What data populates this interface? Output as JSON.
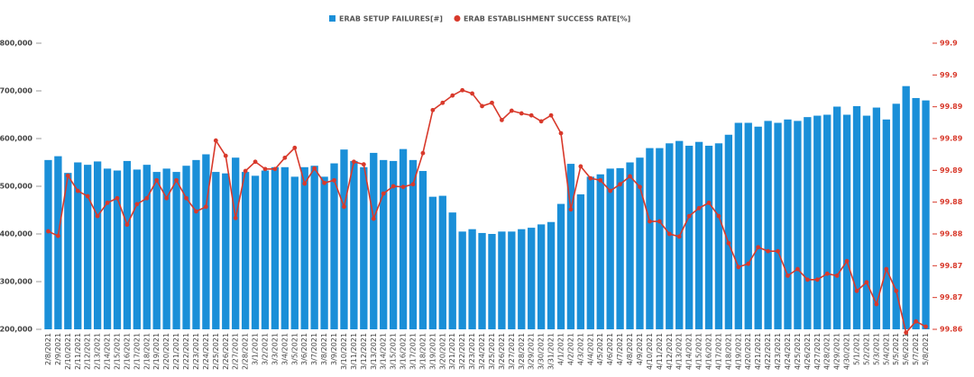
{
  "chart_data": {
    "type": "bar_line",
    "categories": [
      "2/8/2021",
      "2/9/2021",
      "2/10/2021",
      "2/11/2021",
      "2/12/2021",
      "2/13/2021",
      "2/14/2021",
      "2/15/2021",
      "2/16/2021",
      "2/17/2021",
      "2/18/2021",
      "2/19/2021",
      "2/20/2021",
      "2/21/2021",
      "2/22/2021",
      "2/23/2021",
      "2/24/2021",
      "2/25/2021",
      "2/26/2021",
      "2/27/2021",
      "2/28/2021",
      "3/1/2021",
      "3/2/2021",
      "3/3/2021",
      "3/4/2021",
      "3/5/2021",
      "3/6/2021",
      "3/7/2021",
      "3/8/2021",
      "3/9/2021",
      "3/10/2021",
      "3/11/2021",
      "3/12/2021",
      "3/13/2021",
      "3/14/2021",
      "3/15/2021",
      "3/16/2021",
      "3/17/2021",
      "3/18/2021",
      "3/19/2021",
      "3/20/2021",
      "3/21/2021",
      "3/22/2021",
      "3/23/2021",
      "3/24/2021",
      "3/25/2021",
      "3/26/2021",
      "3/27/2021",
      "3/28/2021",
      "3/29/2021",
      "3/30/2021",
      "3/31/2021",
      "4/1/2021",
      "4/2/2021",
      "4/3/2021",
      "4/4/2021",
      "4/5/2021",
      "4/6/2021",
      "4/7/2021",
      "4/8/2021",
      "4/9/2021",
      "4/10/2021",
      "4/11/2021",
      "4/12/2021",
      "4/13/2021",
      "4/14/2021",
      "4/15/2021",
      "4/16/2021",
      "4/17/2021",
      "4/18/2021",
      "4/19/2021",
      "4/20/2021",
      "4/21/2021",
      "4/22/2021",
      "4/23/2021",
      "4/24/2021",
      "4/25/2021",
      "4/26/2021",
      "4/27/2021",
      "4/28/2021",
      "4/29/2021",
      "4/30/2021",
      "5/1/2021",
      "5/2/2021",
      "5/3/2021",
      "5/4/2021",
      "5/5/2021",
      "5/6/2021",
      "5/7/2021",
      "5/8/2021"
    ],
    "series": [
      {
        "name": "ERAB SETUP FAILURES[#]",
        "color": "#1a8fd8",
        "kind": "bar",
        "values": [
          555000,
          563000,
          528000,
          550000,
          545000,
          552000,
          537000,
          533000,
          553000,
          535000,
          545000,
          530000,
          537000,
          530000,
          543000,
          555000,
          567000,
          530000,
          527000,
          560000,
          530000,
          522000,
          533000,
          540000,
          540000,
          520000,
          540000,
          543000,
          520000,
          548000,
          577000,
          553000,
          540000,
          570000,
          555000,
          553000,
          578000,
          555000,
          532000,
          478000,
          480000,
          445000,
          405000,
          410000,
          402000,
          400000,
          405000,
          405000,
          410000,
          413000,
          420000,
          425000,
          463000,
          547000,
          483000,
          520000,
          525000,
          537000,
          538000,
          550000,
          560000,
          580000,
          580000,
          590000,
          595000,
          585000,
          593000,
          585000,
          590000,
          608000,
          633000,
          633000,
          625000,
          637000,
          633000,
          640000,
          637000,
          645000,
          648000,
          650000,
          667000,
          650000,
          668000,
          648000,
          665000,
          640000,
          673000,
          710000,
          685000,
          680000
        ]
      },
      {
        "name": "ERAB ESTABLISHMENT SUCCESS RATE[%]",
        "color": "#d8392b",
        "kind": "line",
        "axis": "y2",
        "values": [
          99.876,
          99.8753,
          99.8844,
          99.8821,
          99.8813,
          99.8783,
          99.8803,
          99.881,
          99.877,
          99.8801,
          99.881,
          99.8837,
          99.881,
          99.8837,
          99.881,
          99.879,
          99.8797,
          99.8897,
          99.8874,
          99.878,
          99.8851,
          99.8865,
          99.8854,
          99.8854,
          99.8871,
          99.8886,
          99.8832,
          99.8855,
          99.8833,
          99.8837,
          99.8797,
          99.8865,
          99.8861,
          99.8779,
          99.8817,
          99.8828,
          99.8827,
          99.8831,
          99.8878,
          99.8943,
          99.8954,
          99.8965,
          99.8973,
          99.8968,
          99.8949,
          99.8954,
          99.8928,
          99.8942,
          99.8938,
          99.8935,
          99.8926,
          99.8935,
          99.8908,
          99.8793,
          99.8858,
          99.884,
          99.8837,
          99.8821,
          99.8831,
          99.8843,
          99.8827,
          99.8775,
          99.8775,
          99.8756,
          99.8752,
          99.8783,
          99.8795,
          99.8803,
          99.8783,
          99.8742,
          99.8706,
          99.8711,
          99.8736,
          99.873,
          99.873,
          99.8693,
          99.8703,
          99.8687,
          99.8687,
          99.8696,
          99.8693,
          99.8715,
          99.867,
          99.8683,
          99.865,
          99.8703,
          99.867,
          99.8607,
          99.8624,
          99.8616
        ]
      }
    ],
    "ylim": [
      200000,
      800000
    ],
    "yticks": [
      {
        "value": 200000,
        "label": "200,000"
      },
      {
        "value": 300000,
        "label": "300,000"
      },
      {
        "value": 400000,
        "label": "400,000"
      },
      {
        "value": 500000,
        "label": "500,000"
      },
      {
        "value": 600000,
        "label": "600,000"
      },
      {
        "value": 700000,
        "label": "700,000"
      },
      {
        "value": 800000,
        "label": "800,000"
      }
    ],
    "y2lim": [
      99.8612,
      99.9044
    ],
    "y2ticks": [
      {
        "value": 99.8612,
        "label": "99.86"
      },
      {
        "value": 99.866,
        "label": "99.87"
      },
      {
        "value": 99.8708,
        "label": "99.87"
      },
      {
        "value": 99.8756,
        "label": "99.88"
      },
      {
        "value": 99.8804,
        "label": "99.88"
      },
      {
        "value": 99.8852,
        "label": "99.89"
      },
      {
        "value": 99.89,
        "label": "99.89"
      },
      {
        "value": 99.8948,
        "label": "99.89"
      },
      {
        "value": 99.8996,
        "label": "99.9"
      },
      {
        "value": 99.9044,
        "label": "99.9"
      }
    ],
    "grid": false,
    "legend": "top"
  }
}
